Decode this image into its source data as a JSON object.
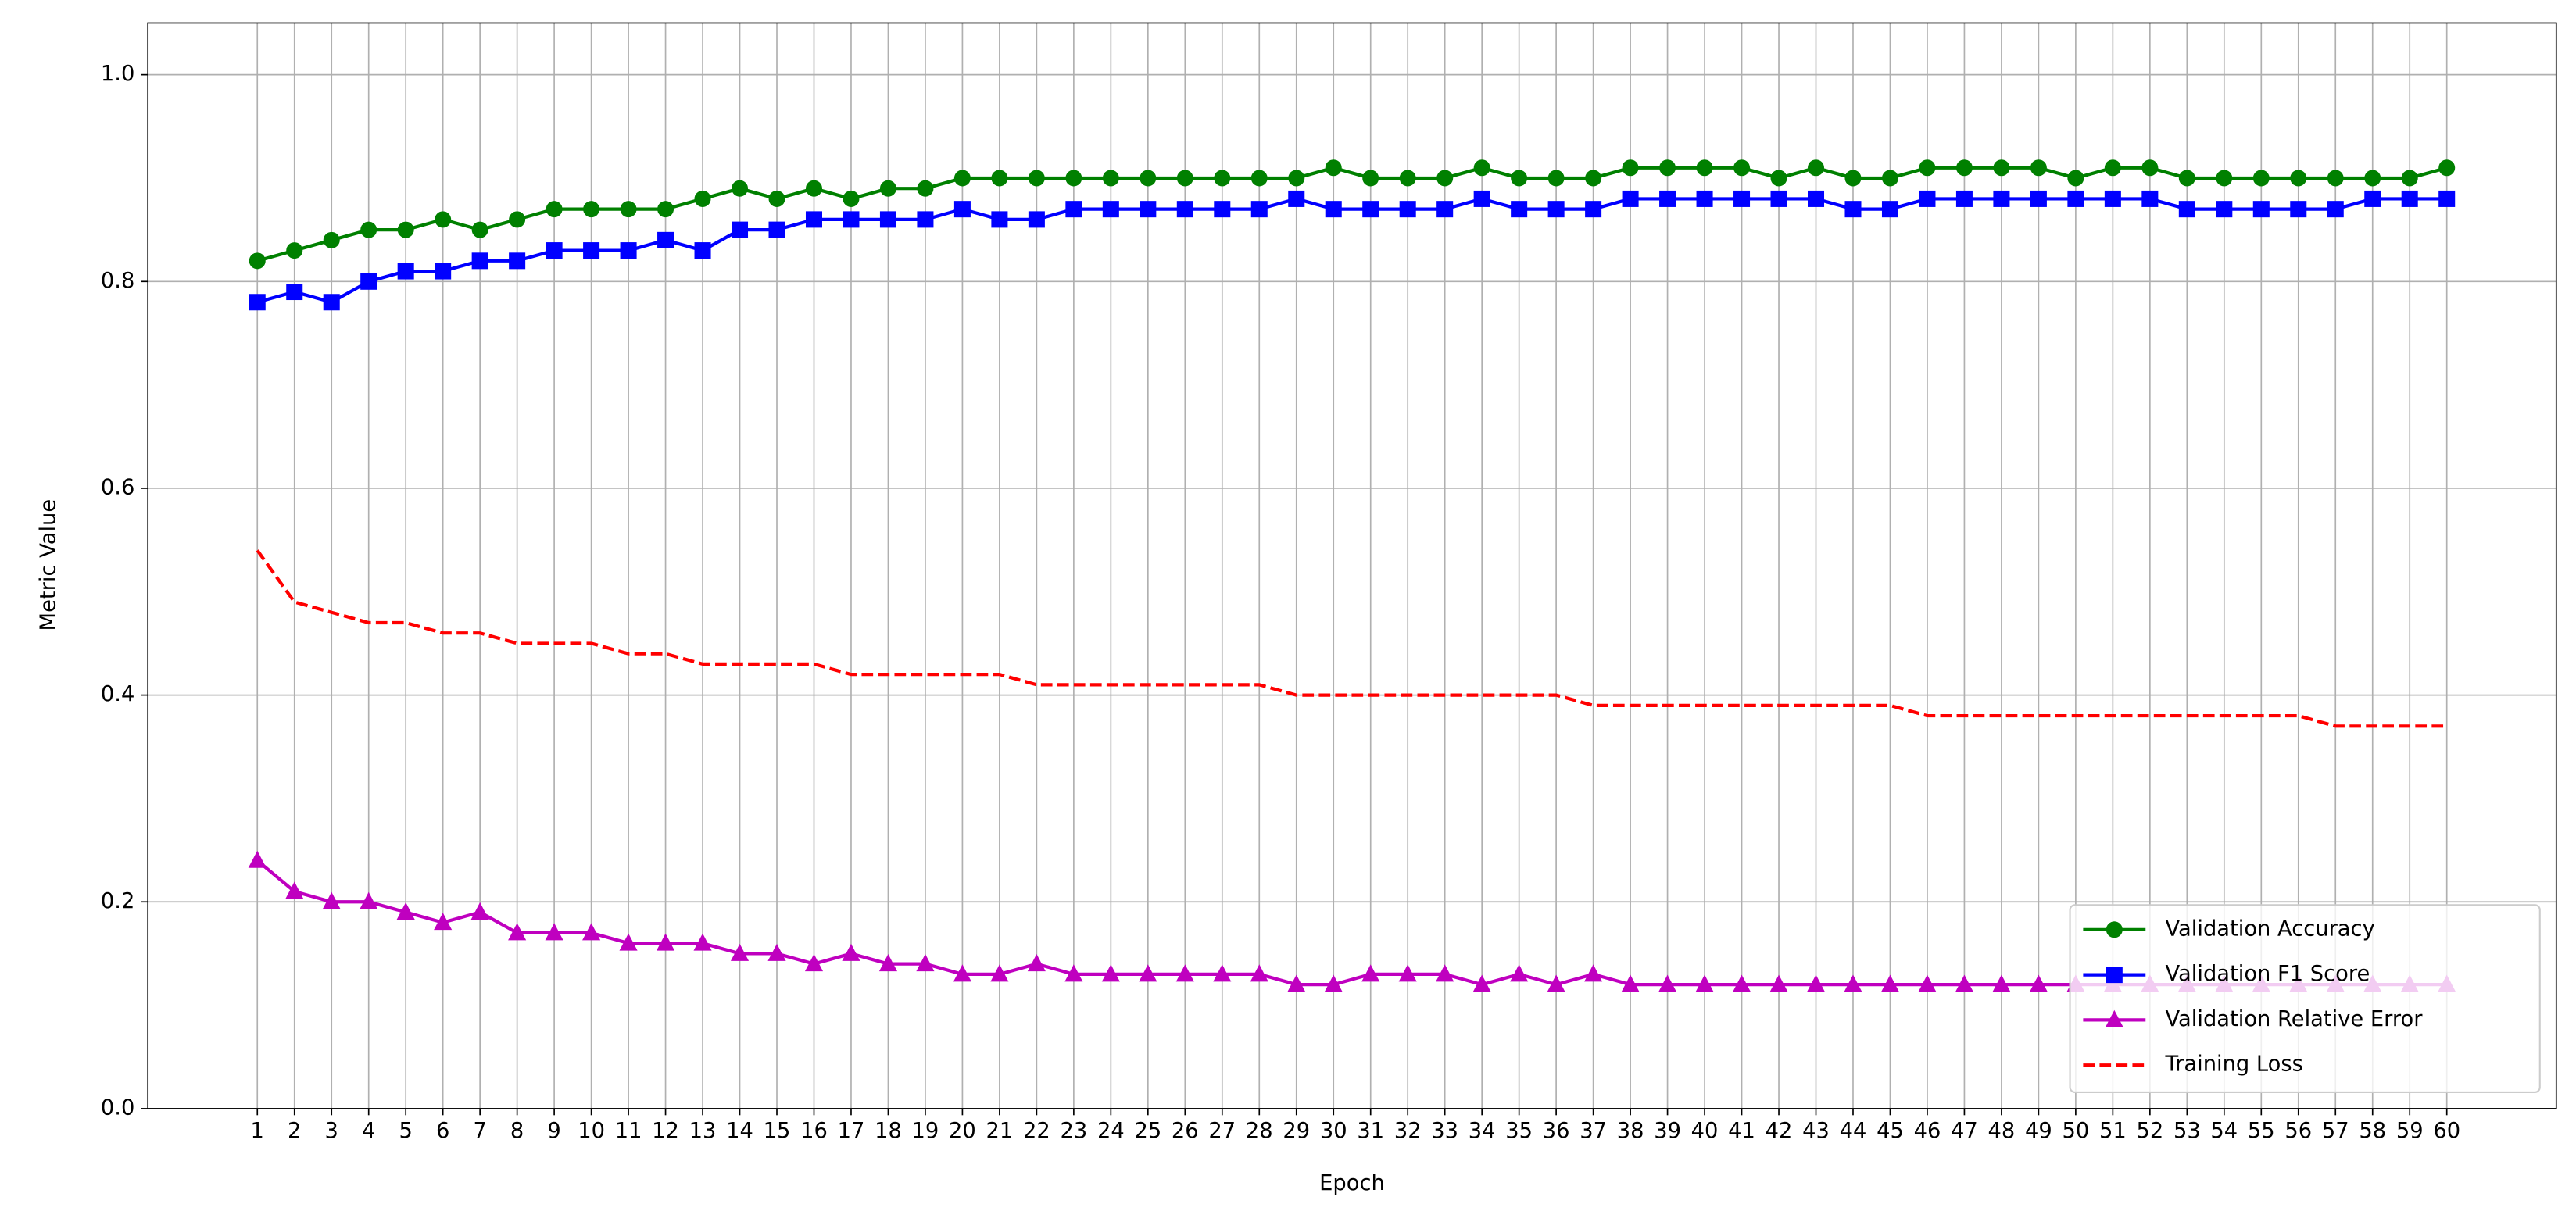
{
  "chart_data": {
    "type": "line",
    "xlabel": "Epoch",
    "ylabel": "Metric Value",
    "x": [
      1,
      2,
      3,
      4,
      5,
      6,
      7,
      8,
      9,
      10,
      11,
      12,
      13,
      14,
      15,
      16,
      17,
      18,
      19,
      20,
      21,
      22,
      23,
      24,
      25,
      26,
      27,
      28,
      29,
      30,
      31,
      32,
      33,
      34,
      35,
      36,
      37,
      38,
      39,
      40,
      41,
      42,
      43,
      44,
      45,
      46,
      47,
      48,
      49,
      50,
      51,
      52,
      53,
      54,
      55,
      56,
      57,
      58,
      59,
      60
    ],
    "xlim": [
      -1.95,
      62.95
    ],
    "xticks": [
      1,
      2,
      3,
      4,
      5,
      6,
      7,
      8,
      9,
      10,
      11,
      12,
      13,
      14,
      15,
      16,
      17,
      18,
      19,
      20,
      21,
      22,
      23,
      24,
      25,
      26,
      27,
      28,
      29,
      30,
      31,
      32,
      33,
      34,
      35,
      36,
      37,
      38,
      39,
      40,
      41,
      42,
      43,
      44,
      45,
      46,
      47,
      48,
      49,
      50,
      51,
      52,
      53,
      54,
      55,
      56,
      57,
      58,
      59,
      60
    ],
    "ylim": [
      0,
      1.05
    ],
    "yticks": [
      {
        "value": 0,
        "label": "0.0"
      },
      0.2,
      0.4,
      0.6,
      0.8,
      {
        "value": 1,
        "label": "1.0"
      }
    ],
    "grid": true,
    "legend": "lower right",
    "series": [
      {
        "name": "Validation Accuracy",
        "color": "#008000",
        "marker": "circle",
        "linestyle": "solid",
        "values": [
          0.82,
          0.83,
          0.84,
          0.85,
          0.85,
          0.86,
          0.85,
          0.86,
          0.87,
          0.87,
          0.87,
          0.87,
          0.88,
          0.89,
          0.88,
          0.89,
          0.88,
          0.89,
          0.89,
          0.9,
          0.9,
          0.9,
          0.9,
          0.9,
          0.9,
          0.9,
          0.9,
          0.9,
          0.9,
          0.91,
          0.9,
          0.9,
          0.9,
          0.91,
          0.9,
          0.9,
          0.9,
          0.91,
          0.91,
          0.91,
          0.91,
          0.9,
          0.91,
          0.9,
          0.9,
          0.91,
          0.91,
          0.91,
          0.91,
          0.9,
          0.91,
          0.91,
          0.9,
          0.9,
          0.9,
          0.9,
          0.9,
          0.9,
          0.9,
          0.91
        ]
      },
      {
        "name": "Validation F1 Score",
        "color": "#0000ff",
        "marker": "square",
        "linestyle": "solid",
        "values": [
          0.78,
          0.79,
          0.78,
          0.8,
          0.81,
          0.81,
          0.82,
          0.82,
          0.83,
          0.83,
          0.83,
          0.84,
          0.83,
          0.85,
          0.85,
          0.86,
          0.86,
          0.86,
          0.86,
          0.87,
          0.86,
          0.86,
          0.87,
          0.87,
          0.87,
          0.87,
          0.87,
          0.87,
          0.88,
          0.87,
          0.87,
          0.87,
          0.87,
          0.88,
          0.87,
          0.87,
          0.87,
          0.88,
          0.88,
          0.88,
          0.88,
          0.88,
          0.88,
          0.87,
          0.87,
          0.88,
          0.88,
          0.88,
          0.88,
          0.88,
          0.88,
          0.88,
          0.87,
          0.87,
          0.87,
          0.87,
          0.87,
          0.88,
          0.88,
          0.88
        ]
      },
      {
        "name": "Validation Relative Error",
        "color": "#bf00bf",
        "marker": "triangle",
        "linestyle": "solid",
        "values": [
          0.24,
          0.21,
          0.2,
          0.2,
          0.19,
          0.18,
          0.19,
          0.17,
          0.17,
          0.17,
          0.16,
          0.16,
          0.16,
          0.15,
          0.15,
          0.14,
          0.15,
          0.14,
          0.14,
          0.13,
          0.13,
          0.14,
          0.13,
          0.13,
          0.13,
          0.13,
          0.13,
          0.13,
          0.12,
          0.12,
          0.13,
          0.13,
          0.13,
          0.12,
          0.13,
          0.12,
          0.13,
          0.12,
          0.12,
          0.12,
          0.12,
          0.12,
          0.12,
          0.12,
          0.12,
          0.12,
          0.12,
          0.12,
          0.12,
          0.12,
          0.12,
          0.12,
          0.12,
          0.12,
          0.12,
          0.12,
          0.12,
          0.12,
          0.12,
          0.12
        ]
      },
      {
        "name": "Training Loss",
        "color": "#ff0000",
        "marker": "none",
        "linestyle": "dashed",
        "values": [
          0.54,
          0.49,
          0.48,
          0.47,
          0.47,
          0.46,
          0.46,
          0.45,
          0.45,
          0.45,
          0.44,
          0.44,
          0.43,
          0.43,
          0.43,
          0.43,
          0.42,
          0.42,
          0.42,
          0.42,
          0.42,
          0.41,
          0.41,
          0.41,
          0.41,
          0.41,
          0.41,
          0.41,
          0.4,
          0.4,
          0.4,
          0.4,
          0.4,
          0.4,
          0.4,
          0.4,
          0.39,
          0.39,
          0.39,
          0.39,
          0.39,
          0.39,
          0.39,
          0.39,
          0.39,
          0.38,
          0.38,
          0.38,
          0.38,
          0.38,
          0.38,
          0.38,
          0.38,
          0.38,
          0.38,
          0.38,
          0.37,
          0.37,
          0.37,
          0.37
        ]
      }
    ]
  }
}
